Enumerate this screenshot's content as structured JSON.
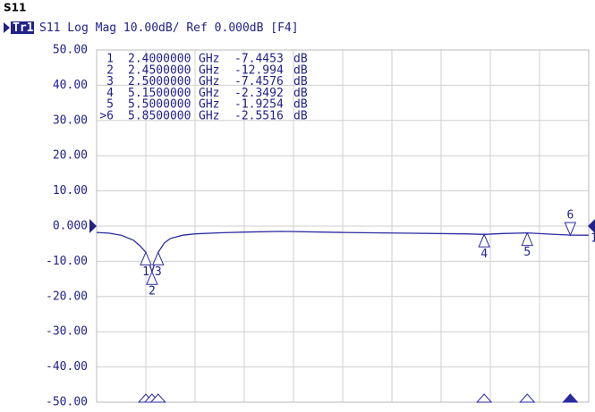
{
  "chart_data": {
    "type": "line",
    "title": "S11",
    "trace": "Tr1",
    "subtitle": "S11 Log Mag 10.00dB/ Ref 0.000dB [F4]",
    "xlim": [
      2.0,
      6.0
    ],
    "xticks": [
      2.0,
      2.4,
      2.8,
      3.2,
      3.6,
      4.0,
      4.4,
      4.8,
      5.2,
      5.6,
      6.0
    ],
    "ylim": [
      -50,
      50
    ],
    "yticks": [
      {
        "value": 50,
        "label": "50.00"
      },
      {
        "value": 40,
        "label": "40.00"
      },
      {
        "value": 30,
        "label": "30.00"
      },
      {
        "value": 20,
        "label": "20.00"
      },
      {
        "value": 10,
        "label": "10.00"
      },
      {
        "value": 0,
        "label": "0.000"
      },
      {
        "value": -10,
        "label": "-10.00"
      },
      {
        "value": -20,
        "label": "-20.00"
      },
      {
        "value": -30,
        "label": "-30.00"
      },
      {
        "value": -40,
        "label": "-40.00"
      },
      {
        "value": -50,
        "label": "-50.00"
      }
    ],
    "grid": true,
    "ref_label": "1",
    "series": [
      {
        "name": "S11",
        "color": "#2a2aa0",
        "x": [
          2.0,
          2.1,
          2.2,
          2.3,
          2.35,
          2.4,
          2.45,
          2.5,
          2.55,
          2.6,
          2.7,
          2.8,
          3.0,
          3.2,
          3.5,
          4.0,
          4.5,
          5.0,
          5.15,
          5.3,
          5.5,
          5.7,
          5.85,
          6.0
        ],
        "values": [
          -1.8,
          -2.0,
          -2.6,
          -4.0,
          -5.5,
          -7.4453,
          -12.994,
          -7.4576,
          -4.8,
          -3.5,
          -2.6,
          -2.2,
          -1.9,
          -1.7,
          -1.5,
          -1.8,
          -2.0,
          -2.2,
          -2.3492,
          -2.1,
          -1.9254,
          -2.3,
          -2.5516,
          -2.6
        ]
      }
    ],
    "markers": {
      "table_names": [
        "1",
        "2",
        "3",
        "4",
        "5",
        ">6"
      ],
      "labels": [
        "1",
        "2",
        "3",
        "4",
        "5",
        "6"
      ],
      "x": [
        2.4,
        2.45,
        2.5,
        5.15,
        5.5,
        5.85
      ],
      "x_labels": [
        "2.4000000",
        "2.4500000",
        "2.5000000",
        "5.1500000",
        "5.5000000",
        "5.8500000"
      ],
      "x_unit": "GHz",
      "values": [
        -7.4453,
        -12.994,
        -7.4576,
        -2.3492,
        -1.9254,
        -2.5516
      ],
      "unit": "dB"
    }
  }
}
